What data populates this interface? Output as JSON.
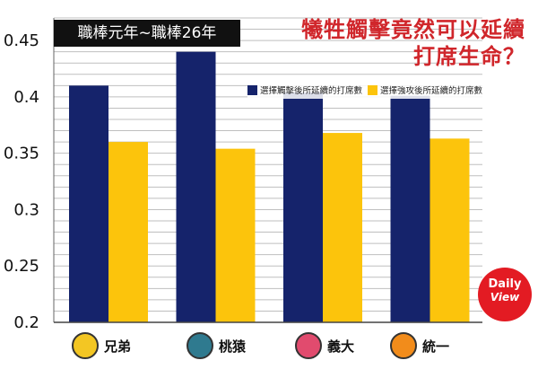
{
  "header": {
    "period_label": "職棒元年~職棒26年",
    "title_line1": "犧牲觸擊竟然可以延續",
    "title_line2": "打席生命？"
  },
  "logo": {
    "line1": "Daily",
    "line2": "View"
  },
  "colors": {
    "series1": "#15236b",
    "series2": "#fcc40c",
    "title": "#d0262b",
    "grid": "#bfbfbf"
  },
  "chart_data": {
    "type": "bar",
    "title": "犧牲觸擊竟然可以延續打席生命？",
    "categories": [
      "兄弟",
      "桃猿",
      "義大",
      "統一"
    ],
    "category_icons": [
      "brothers-elephant-icon",
      "lamigo-monkey-icon",
      "rhinos-icon",
      "unilions-icon"
    ],
    "series": [
      {
        "name": "選擇觸擊後所延續的打席數",
        "values": [
          0.41,
          0.44,
          0.404,
          0.401
        ],
        "color": "#15236b"
      },
      {
        "name": "選擇強攻後所延續的打席數",
        "values": [
          0.36,
          0.354,
          0.368,
          0.363
        ],
        "color": "#fcc40c"
      }
    ],
    "y_ticks": [
      "0.2",
      "0.25",
      "0.3",
      "0.35",
      "0.4",
      "0.45"
    ],
    "ylim": [
      0.2,
      0.47
    ],
    "grid": true,
    "legend_position": "top-right"
  }
}
